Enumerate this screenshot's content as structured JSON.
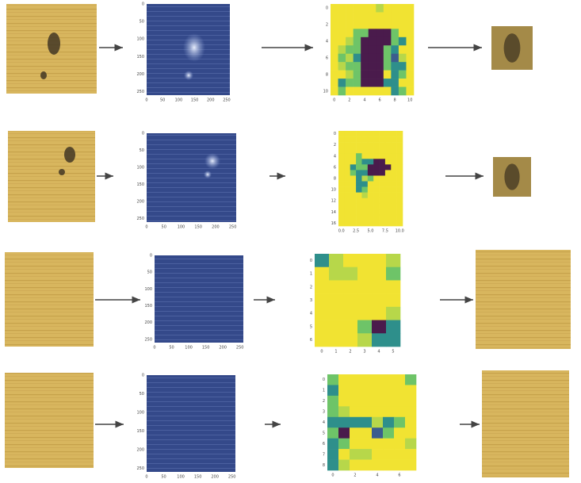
{
  "rows": [
    {
      "spectral_x_ticks": [
        "0",
        "50",
        "100",
        "150",
        "200",
        "250"
      ],
      "spectral_y_ticks": [
        "0",
        "50",
        "100",
        "150",
        "200",
        "250"
      ],
      "map_x_ticks": [
        "0",
        "2",
        "4",
        "6",
        "8",
        "10"
      ],
      "map_y_ticks": [
        "0",
        "2",
        "4",
        "6",
        "8",
        "10"
      ],
      "map_cells": [
        "00000010000",
        "00000000000",
        "00000000000",
        "00022555200",
        "00125555230",
        "01225552300",
        "02135552410",
        "01225552330",
        "00125550320",
        "03225553300",
        "02000000320"
      ]
    },
    {
      "spectral_x_ticks": [
        "0",
        "50",
        "100",
        "150",
        "200",
        "250"
      ],
      "spectral_y_ticks": [
        "0",
        "50",
        "100",
        "150",
        "200",
        "250"
      ],
      "map_x_ticks": [
        "0.0",
        "2.5",
        "5.0",
        "7.5",
        "10.0"
      ],
      "map_y_ticks": [
        "0",
        "2",
        "4",
        "6",
        "8",
        "10",
        "12",
        "14",
        "16"
      ],
      "map_cells": [
        "00000000000",
        "00000000000",
        "00000000000",
        "00000000000",
        "00020000000",
        "00023355000",
        "00322555500",
        "00233555000",
        "00031200000",
        "00033000000",
        "00032000000",
        "00001000000",
        "00000000000",
        "00000000000",
        "00000000000",
        "00000000000",
        "00000000000"
      ]
    },
    {
      "spectral_x_ticks": [
        "0",
        "50",
        "100",
        "150",
        "200",
        "250"
      ],
      "spectral_y_ticks": [
        "0",
        "50",
        "100",
        "150",
        "200",
        "250"
      ],
      "map_x_ticks": [
        "0",
        "1",
        "2",
        "3",
        "4",
        "5"
      ],
      "map_y_ticks": [
        "0",
        "1",
        "2",
        "3",
        "4",
        "5",
        "6"
      ],
      "map_cells": [
        "310001",
        "011002",
        "000000",
        "000000",
        "000001",
        "000253",
        "000133"
      ]
    },
    {
      "spectral_x_ticks": [
        "0",
        "50",
        "100",
        "150",
        "200",
        "250"
      ],
      "spectral_y_ticks": [
        "0",
        "50",
        "100",
        "150",
        "200",
        "250"
      ],
      "map_x_ticks": [
        "0",
        "2",
        "4",
        "6"
      ],
      "map_y_ticks": [
        "0",
        "1",
        "2",
        "3",
        "4",
        "5",
        "6",
        "7",
        "8"
      ],
      "map_cells": [
        "20000002",
        "30000000",
        "20000000",
        "21000000",
        "33331320",
        "25004200",
        "32000001",
        "30110000",
        "31000000"
      ]
    }
  ]
}
